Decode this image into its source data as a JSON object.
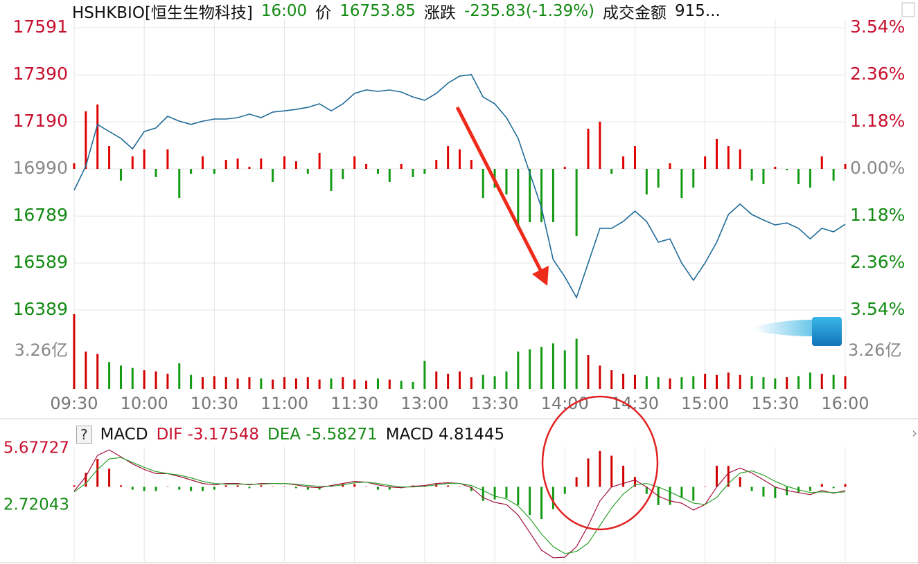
{
  "chart_data": [
    {
      "type": "line",
      "title": "HSHKBIO[恒生生物科技]",
      "time": "16:00",
      "price_label": "价",
      "price": 16753.85,
      "change_label": "涨跌",
      "change": "-235.83(-1.39%)",
      "amount_label": "成交金额",
      "amount": "915...",
      "x": [
        0,
        5,
        10,
        15,
        20,
        25,
        30,
        35,
        40,
        45,
        50,
        55,
        60,
        65,
        70,
        75,
        80,
        85,
        90,
        95,
        100,
        105,
        110,
        115,
        120,
        125,
        130,
        135,
        140,
        145,
        150,
        155,
        160,
        165,
        170,
        175,
        180,
        185,
        190,
        195,
        200,
        205,
        210,
        215,
        220,
        225,
        230,
        235,
        240,
        245,
        250,
        255,
        260,
        265,
        270,
        275,
        280,
        285,
        290,
        295,
        300,
        305,
        310,
        315,
        320,
        325,
        330
      ],
      "xlim": [
        0,
        330
      ],
      "xticks": [
        {
          "value": 0,
          "label": "09:30"
        },
        {
          "value": 30,
          "label": "10:00"
        },
        {
          "value": 60,
          "label": "10:30"
        },
        {
          "value": 90,
          "label": "11:00"
        },
        {
          "value": 120,
          "label": "11:30"
        },
        {
          "value": 150,
          "label": "13:00"
        },
        {
          "value": 180,
          "label": "13:30"
        },
        {
          "value": 210,
          "label": "14:00"
        },
        {
          "value": 240,
          "label": "14:30"
        },
        {
          "value": 270,
          "label": "15:00"
        },
        {
          "value": 300,
          "label": "15:30"
        },
        {
          "value": 330,
          "label": "16:00"
        }
      ],
      "ylim": [
        16389,
        17591
      ],
      "yticks": [
        17591,
        17390,
        17190,
        16990,
        16789,
        16589,
        16389
      ],
      "y2lim": [
        -3.54,
        3.54
      ],
      "y2ticks": [
        {
          "value": 3.54,
          "label": "3.54%"
        },
        {
          "value": 2.36,
          "label": "2.36%"
        },
        {
          "value": 1.18,
          "label": "1.18%"
        },
        {
          "value": 0,
          "label": "0.00%"
        },
        {
          "value": -1.18,
          "label": "1.18%"
        },
        {
          "value": -2.36,
          "label": "2.36%"
        },
        {
          "value": -3.54,
          "label": "3.54%"
        }
      ],
      "grid": true,
      "up_color": "#e00000",
      "down_color": "#129a12",
      "series": [
        {
          "type": "line",
          "color": "#1e6a99",
          "values": [
            16899,
            17002,
            17179,
            17149,
            17120,
            17075,
            17149,
            17164,
            17214,
            17193,
            17179,
            17193,
            17202,
            17202,
            17208,
            17223,
            17208,
            17232,
            17237,
            17243,
            17252,
            17267,
            17237,
            17267,
            17311,
            17326,
            17320,
            17326,
            17317,
            17296,
            17282,
            17311,
            17355,
            17385,
            17391,
            17296,
            17267,
            17208,
            17120,
            16972,
            16825,
            16604,
            16530,
            16442,
            16589,
            16737,
            16737,
            16766,
            16810,
            16766,
            16678,
            16692,
            16589,
            16516,
            16589,
            16678,
            16796,
            16840,
            16796,
            16772,
            16751,
            16760,
            16737,
            16692,
            16737,
            16722,
            16754
          ]
        },
        {
          "type": "bar",
          "values": [
            17014,
            17235,
            17264,
            17087,
            16940,
            17043,
            17073,
            16955,
            17073,
            16866,
            16969,
            17043,
            16969,
            17028,
            17034,
            16999,
            17034,
            16934,
            17043,
            17022,
            16969,
            17058,
            16896,
            16946,
            17043,
            17011,
            16969,
            16934,
            17011,
            16955,
            16969,
            17028,
            17087,
            17073,
            17028,
            16866,
            16910,
            16881,
            16733,
            16763,
            16763,
            16763,
            16999,
            16704,
            17161,
            17191,
            16969,
            17043,
            17087,
            16881,
            16910,
            17014,
            16866,
            16910,
            17043,
            17117,
            17087,
            17073,
            16940,
            16925,
            16999,
            16984,
            16925,
            16910,
            17043,
            16940,
            17011
          ]
        }
      ]
    },
    {
      "type": "bar",
      "ylim": [
        0,
        6.64
      ],
      "yticks": [
        {
          "value": 3.26,
          "label": "3.26亿"
        }
      ],
      "up_color": "#d00000",
      "down_color": "#129a12",
      "values": [
        6.4,
        3.2,
        3.0,
        2.3,
        2.0,
        1.8,
        1.6,
        1.5,
        1.3,
        2.2,
        1.2,
        1.0,
        1.1,
        1.0,
        0.9,
        1.0,
        0.9,
        0.8,
        1.0,
        0.9,
        1.0,
        0.8,
        0.9,
        1.0,
        0.8,
        0.7,
        0.9,
        0.8,
        0.7,
        0.6,
        2.4,
        1.5,
        1.3,
        1.5,
        1.0,
        1.2,
        1.1,
        1.5,
        3.2,
        3.4,
        3.6,
        3.9,
        3.3,
        4.3,
        2.9,
        2.0,
        1.6,
        1.3,
        1.2,
        1.1,
        1.0,
        0.9,
        1.0,
        1.1,
        1.3,
        1.2,
        1.4,
        1.2,
        1.1,
        1.0,
        0.9,
        1.0,
        1.1,
        1.4,
        1.3,
        1.2,
        1.1
      ]
    },
    {
      "type": "macd",
      "help": "?",
      "title": "MACD",
      "ylim": [
        -11.1,
        5.67727
      ],
      "yticks": [
        5.67727,
        {
          "value": -2.72043,
          "label": "2.72043"
        }
      ],
      "up_color": "#d00000",
      "down_color": "#129a12",
      "series": [
        {
          "name": "DIF",
          "color": "#a0103a",
          "last": -3.17548,
          "values": [
            -0.64,
            1.53,
            4.64,
            5.47,
            4.44,
            3.4,
            2.57,
            1.95,
            1.95,
            1.53,
            1.02,
            0.5,
            0.29,
            0.5,
            0.5,
            0.29,
            0.5,
            0.5,
            0.5,
            0.29,
            -0.02,
            -0.12,
            0.19,
            0.5,
            0.81,
            0.7,
            0.29,
            -0.02,
            -0.12,
            0.08,
            0.19,
            0.5,
            0.6,
            0.5,
            -0.12,
            -1.58,
            -2.3,
            -2.61,
            -4.17,
            -6.76,
            -9.35,
            -10.49,
            -10.39,
            -8.84,
            -5.73,
            -2.09,
            -0.02,
            0.5,
            1.02,
            -0.02,
            -1.37,
            -2.09,
            -2.41,
            -3.44,
            -2.61,
            -0.02,
            2.05,
            2.78,
            2.05,
            1.02,
            -0.02,
            -0.54,
            -0.85,
            -1.16,
            -0.54,
            -0.95,
            -0.54
          ]
        },
        {
          "name": "DEA",
          "color": "#2da02d",
          "last": -5.58271,
          "values": [
            -0.75,
            0.5,
            2.57,
            4.13,
            4.33,
            3.61,
            2.88,
            2.26,
            1.95,
            1.74,
            1.33,
            0.81,
            0.5,
            0.39,
            0.39,
            0.39,
            0.39,
            0.5,
            0.5,
            0.39,
            0.19,
            0.08,
            0.08,
            0.29,
            0.6,
            0.7,
            0.5,
            0.19,
            -0.02,
            -0.02,
            0.08,
            0.29,
            0.5,
            0.5,
            0.19,
            -0.54,
            -1.37,
            -1.78,
            -2.82,
            -4.68,
            -6.97,
            -8.84,
            -9.87,
            -9.56,
            -8.32,
            -5.73,
            -3.13,
            -1.06,
            0.29,
            0.5,
            -0.02,
            -0.75,
            -1.58,
            -2.41,
            -2.61,
            -1.58,
            0.5,
            2.05,
            2.36,
            1.74,
            0.81,
            0.08,
            -0.44,
            -0.85,
            -0.75,
            -0.85,
            -0.75
          ]
        },
        {
          "name": "MACD",
          "type": "bar",
          "last": 4.81445,
          "values": [
            0.22,
            2.06,
            4.14,
            2.68,
            0.22,
            -0.42,
            -0.62,
            -0.62,
            0,
            -0.42,
            -0.62,
            -0.62,
            -0.42,
            0.22,
            0.22,
            -0.2,
            0.22,
            0,
            0,
            -0.2,
            -0.42,
            -0.4,
            0.22,
            0.42,
            0.42,
            0,
            -0.42,
            -0.42,
            -0.2,
            0.2,
            0.22,
            0.42,
            0.2,
            0,
            -0.62,
            -2.08,
            -1.86,
            -1.66,
            -2.7,
            -4.16,
            -4.76,
            -3.3,
            -1.04,
            1.44,
            4.2,
            5.3,
            4.6,
            3.12,
            1.46,
            -1.04,
            -2.7,
            -2.68,
            -1.66,
            -2.06,
            0,
            3.12,
            3.1,
            1.46,
            -0.62,
            -1.44,
            -1.66,
            -1.24,
            -0.82,
            -0.62,
            0.42,
            -0.2,
            0.42
          ]
        }
      ]
    }
  ]
}
